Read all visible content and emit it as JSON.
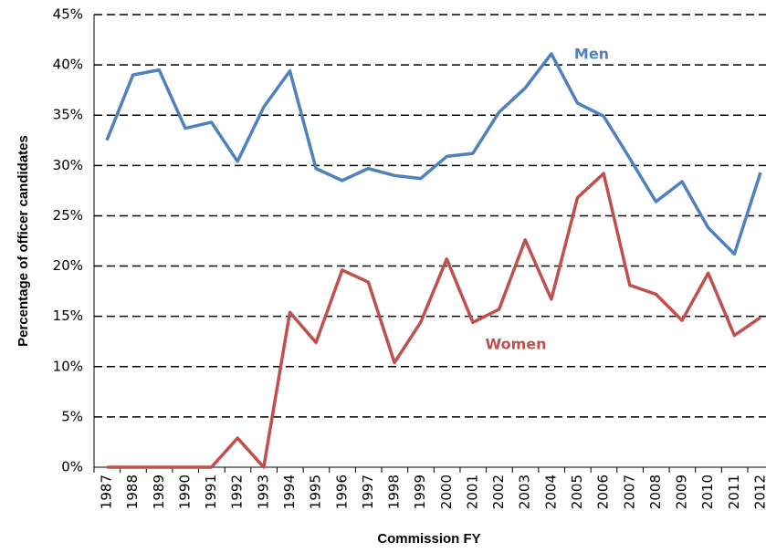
{
  "chart_data": {
    "type": "line",
    "x_label": "Commission FY",
    "y_label": "Percentage of officer candidates",
    "categories": [
      "1987",
      "1988",
      "1989",
      "1990",
      "1991",
      "1992",
      "1993",
      "1994",
      "1995",
      "1996",
      "1997",
      "1998",
      "1999",
      "2000",
      "2001",
      "2002",
      "2003",
      "2004",
      "2005",
      "2006",
      "2007",
      "2008",
      "2009",
      "2010",
      "2011",
      "2012"
    ],
    "series": [
      {
        "name": "Men",
        "color": "#4f81bd",
        "values": [
          32.5,
          39,
          39.5,
          33.7,
          34.3,
          30.4,
          35.8,
          39.4,
          29.7,
          28.5,
          29.7,
          29.0,
          28.7,
          30.9,
          31.2,
          35.3,
          37.7,
          41.1,
          36.2,
          34.9,
          30.7,
          26.4,
          28.4,
          23.8,
          21.2,
          29.3
        ]
      },
      {
        "name": "Women",
        "color": "#c0504d",
        "values": [
          0,
          0,
          0,
          0,
          0,
          2.9,
          0,
          15.4,
          12.4,
          19.6,
          18.4,
          10.4,
          14.4,
          20.7,
          14.4,
          15.7,
          22.6,
          16.7,
          26.8,
          29.2,
          18.1,
          17.2,
          14.6,
          19.3,
          13.1,
          14.9
        ]
      }
    ],
    "ylim": [
      0,
      45
    ],
    "yticks": [
      {
        "value": 0,
        "label": "0%"
      },
      {
        "value": 5,
        "label": "5%"
      },
      {
        "value": 10,
        "label": "10%"
      },
      {
        "value": 15,
        "label": "15%"
      },
      {
        "value": 20,
        "label": "20%"
      },
      {
        "value": 25,
        "label": "25%"
      },
      {
        "value": 30,
        "label": "30%"
      },
      {
        "value": 35,
        "label": "35%"
      },
      {
        "value": 40,
        "label": "40%"
      },
      {
        "value": 45,
        "label": "45%"
      }
    ],
    "grid": true
  }
}
